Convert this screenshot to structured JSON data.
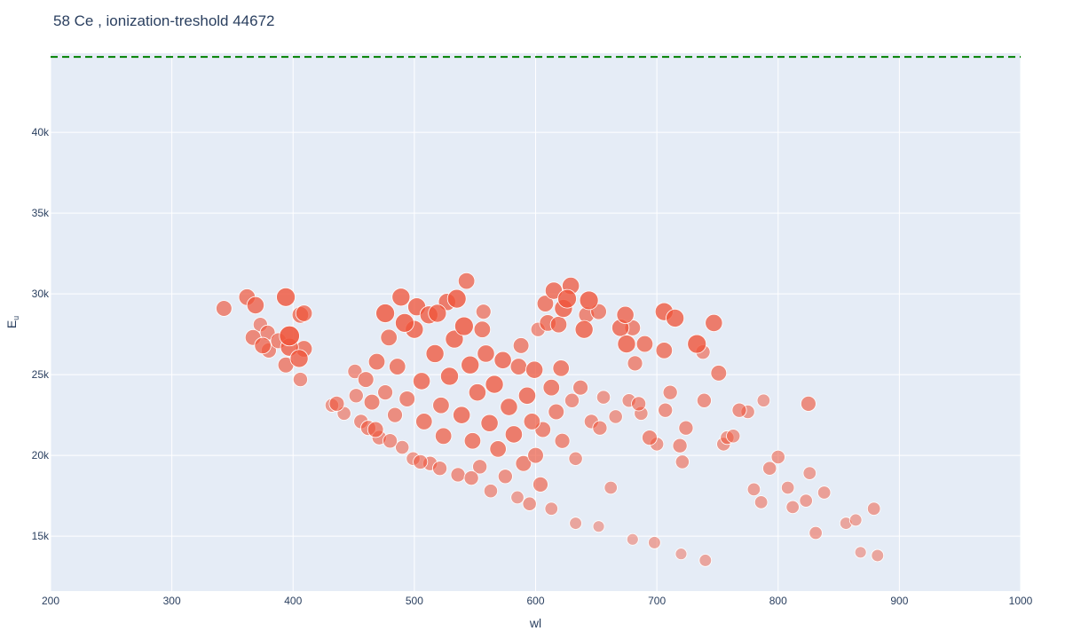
{
  "chart_data": {
    "type": "scatter",
    "title": "58 Ce , ionization-treshold 44672",
    "xlabel": "wl",
    "ylabel": "E",
    "ylabel_sub": "u",
    "xlim": [
      200,
      1000
    ],
    "ylim": [
      11600,
      44900
    ],
    "x_ticks": [
      200,
      300,
      400,
      500,
      600,
      700,
      800,
      900,
      1000
    ],
    "x_tick_labels": [
      "200",
      "300",
      "400",
      "500",
      "600",
      "700",
      "800",
      "900",
      "1000"
    ],
    "y_ticks": [
      15000,
      20000,
      25000,
      30000,
      35000,
      40000
    ],
    "y_tick_labels": [
      "15k",
      "20k",
      "25k",
      "30k",
      "35k",
      "40k"
    ],
    "threshold": {
      "y": 44672,
      "color": "#008000",
      "style": "dashed"
    },
    "marker_color": "#EF553B",
    "plot_background": "#E5ECF6",
    "grid": true,
    "points": [
      {
        "x": 343,
        "y": 29100,
        "s": 0.55
      },
      {
        "x": 362,
        "y": 29800,
        "s": 0.6
      },
      {
        "x": 367,
        "y": 27300,
        "s": 0.55
      },
      {
        "x": 369,
        "y": 29300,
        "s": 0.65
      },
      {
        "x": 373,
        "y": 28100,
        "s": 0.45
      },
      {
        "x": 375,
        "y": 26800,
        "s": 0.6
      },
      {
        "x": 379,
        "y": 27600,
        "s": 0.5
      },
      {
        "x": 380,
        "y": 26500,
        "s": 0.5
      },
      {
        "x": 388,
        "y": 27100,
        "s": 0.55
      },
      {
        "x": 394,
        "y": 29800,
        "s": 0.75
      },
      {
        "x": 394,
        "y": 25600,
        "s": 0.55
      },
      {
        "x": 397,
        "y": 26700,
        "s": 0.7
      },
      {
        "x": 397,
        "y": 27400,
        "s": 0.85
      },
      {
        "x": 405,
        "y": 26000,
        "s": 0.7
      },
      {
        "x": 406,
        "y": 28700,
        "s": 0.6
      },
      {
        "x": 406,
        "y": 24700,
        "s": 0.45
      },
      {
        "x": 409,
        "y": 28800,
        "s": 0.6
      },
      {
        "x": 409,
        "y": 26600,
        "s": 0.6
      },
      {
        "x": 432,
        "y": 23100,
        "s": 0.4
      },
      {
        "x": 436,
        "y": 23200,
        "s": 0.5
      },
      {
        "x": 442,
        "y": 22600,
        "s": 0.4
      },
      {
        "x": 451,
        "y": 25200,
        "s": 0.45
      },
      {
        "x": 452,
        "y": 23700,
        "s": 0.45
      },
      {
        "x": 456,
        "y": 22100,
        "s": 0.45
      },
      {
        "x": 460,
        "y": 24700,
        "s": 0.55
      },
      {
        "x": 462,
        "y": 21700,
        "s": 0.5
      },
      {
        "x": 465,
        "y": 23300,
        "s": 0.55
      },
      {
        "x": 468,
        "y": 21600,
        "s": 0.55
      },
      {
        "x": 469,
        "y": 25800,
        "s": 0.6
      },
      {
        "x": 471,
        "y": 21100,
        "s": 0.45
      },
      {
        "x": 476,
        "y": 28800,
        "s": 0.75
      },
      {
        "x": 476,
        "y": 23900,
        "s": 0.5
      },
      {
        "x": 479,
        "y": 27300,
        "s": 0.6
      },
      {
        "x": 480,
        "y": 20900,
        "s": 0.45
      },
      {
        "x": 484,
        "y": 22500,
        "s": 0.5
      },
      {
        "x": 486,
        "y": 25500,
        "s": 0.6
      },
      {
        "x": 489,
        "y": 29800,
        "s": 0.7
      },
      {
        "x": 490,
        "y": 20500,
        "s": 0.4
      },
      {
        "x": 492,
        "y": 28200,
        "s": 0.75
      },
      {
        "x": 494,
        "y": 23500,
        "s": 0.55
      },
      {
        "x": 499,
        "y": 19800,
        "s": 0.4
      },
      {
        "x": 500,
        "y": 27800,
        "s": 0.7
      },
      {
        "x": 502,
        "y": 29200,
        "s": 0.7
      },
      {
        "x": 506,
        "y": 24600,
        "s": 0.65
      },
      {
        "x": 508,
        "y": 22100,
        "s": 0.6
      },
      {
        "x": 512,
        "y": 28700,
        "s": 0.7
      },
      {
        "x": 513,
        "y": 19500,
        "s": 0.45
      },
      {
        "x": 517,
        "y": 26300,
        "s": 0.7
      },
      {
        "x": 519,
        "y": 28800,
        "s": 0.7
      },
      {
        "x": 522,
        "y": 23100,
        "s": 0.6
      },
      {
        "x": 524,
        "y": 21200,
        "s": 0.6
      },
      {
        "x": 527,
        "y": 29500,
        "s": 0.65
      },
      {
        "x": 529,
        "y": 24900,
        "s": 0.7
      },
      {
        "x": 533,
        "y": 27200,
        "s": 0.7
      },
      {
        "x": 535,
        "y": 29700,
        "s": 0.75
      },
      {
        "x": 536,
        "y": 18800,
        "s": 0.45
      },
      {
        "x": 539,
        "y": 22500,
        "s": 0.65
      },
      {
        "x": 541,
        "y": 28000,
        "s": 0.75
      },
      {
        "x": 543,
        "y": 30800,
        "s": 0.6
      },
      {
        "x": 546,
        "y": 25600,
        "s": 0.7
      },
      {
        "x": 548,
        "y": 20900,
        "s": 0.6
      },
      {
        "x": 552,
        "y": 23900,
        "s": 0.65
      },
      {
        "x": 554,
        "y": 19300,
        "s": 0.45
      },
      {
        "x": 556,
        "y": 27800,
        "s": 0.6
      },
      {
        "x": 557,
        "y": 28900,
        "s": 0.5
      },
      {
        "x": 559,
        "y": 26300,
        "s": 0.65
      },
      {
        "x": 562,
        "y": 22000,
        "s": 0.65
      },
      {
        "x": 566,
        "y": 24400,
        "s": 0.7
      },
      {
        "x": 569,
        "y": 20400,
        "s": 0.6
      },
      {
        "x": 573,
        "y": 25900,
        "s": 0.65
      },
      {
        "x": 575,
        "y": 18700,
        "s": 0.45
      },
      {
        "x": 578,
        "y": 23000,
        "s": 0.65
      },
      {
        "x": 582,
        "y": 21300,
        "s": 0.65
      },
      {
        "x": 586,
        "y": 25500,
        "s": 0.6
      },
      {
        "x": 588,
        "y": 26800,
        "s": 0.55
      },
      {
        "x": 590,
        "y": 19500,
        "s": 0.55
      },
      {
        "x": 593,
        "y": 23700,
        "s": 0.65
      },
      {
        "x": 595,
        "y": 17000,
        "s": 0.4
      },
      {
        "x": 597,
        "y": 22100,
        "s": 0.6
      },
      {
        "x": 599,
        "y": 25300,
        "s": 0.65
      },
      {
        "x": 600,
        "y": 20000,
        "s": 0.55
      },
      {
        "x": 602,
        "y": 27800,
        "s": 0.45
      },
      {
        "x": 604,
        "y": 18200,
        "s": 0.5
      },
      {
        "x": 606,
        "y": 21600,
        "s": 0.55
      },
      {
        "x": 608,
        "y": 29400,
        "s": 0.6
      },
      {
        "x": 610,
        "y": 28200,
        "s": 0.6
      },
      {
        "x": 613,
        "y": 24200,
        "s": 0.6
      },
      {
        "x": 615,
        "y": 30200,
        "s": 0.65
      },
      {
        "x": 617,
        "y": 22700,
        "s": 0.55
      },
      {
        "x": 619,
        "y": 28100,
        "s": 0.6
      },
      {
        "x": 621,
        "y": 25400,
        "s": 0.6
      },
      {
        "x": 622,
        "y": 20900,
        "s": 0.5
      },
      {
        "x": 623,
        "y": 29100,
        "s": 0.7
      },
      {
        "x": 626,
        "y": 29700,
        "s": 0.75
      },
      {
        "x": 629,
        "y": 30500,
        "s": 0.65
      },
      {
        "x": 630,
        "y": 23400,
        "s": 0.45
      },
      {
        "x": 633,
        "y": 19800,
        "s": 0.4
      },
      {
        "x": 637,
        "y": 24200,
        "s": 0.5
      },
      {
        "x": 640,
        "y": 27800,
        "s": 0.7
      },
      {
        "x": 642,
        "y": 28700,
        "s": 0.55
      },
      {
        "x": 644,
        "y": 29600,
        "s": 0.75
      },
      {
        "x": 646,
        "y": 22100,
        "s": 0.45
      },
      {
        "x": 652,
        "y": 28900,
        "s": 0.55
      },
      {
        "x": 653,
        "y": 21700,
        "s": 0.45
      },
      {
        "x": 656,
        "y": 23600,
        "s": 0.4
      },
      {
        "x": 662,
        "y": 18000,
        "s": 0.35
      },
      {
        "x": 666,
        "y": 22400,
        "s": 0.4
      },
      {
        "x": 670,
        "y": 27900,
        "s": 0.65
      },
      {
        "x": 674,
        "y": 28700,
        "s": 0.65
      },
      {
        "x": 675,
        "y": 26900,
        "s": 0.7
      },
      {
        "x": 677,
        "y": 23400,
        "s": 0.4
      },
      {
        "x": 680,
        "y": 27900,
        "s": 0.55
      },
      {
        "x": 682,
        "y": 25700,
        "s": 0.5
      },
      {
        "x": 685,
        "y": 23200,
        "s": 0.45
      },
      {
        "x": 687,
        "y": 22600,
        "s": 0.4
      },
      {
        "x": 690,
        "y": 26900,
        "s": 0.6
      },
      {
        "x": 694,
        "y": 21100,
        "s": 0.5
      },
      {
        "x": 700,
        "y": 20700,
        "s": 0.4
      },
      {
        "x": 706,
        "y": 28900,
        "s": 0.7
      },
      {
        "x": 706,
        "y": 26500,
        "s": 0.6
      },
      {
        "x": 707,
        "y": 22800,
        "s": 0.45
      },
      {
        "x": 711,
        "y": 23900,
        "s": 0.45
      },
      {
        "x": 715,
        "y": 28500,
        "s": 0.7
      },
      {
        "x": 719,
        "y": 20600,
        "s": 0.45
      },
      {
        "x": 721,
        "y": 19600,
        "s": 0.4
      },
      {
        "x": 724,
        "y": 21700,
        "s": 0.45
      },
      {
        "x": 733,
        "y": 26900,
        "s": 0.75
      },
      {
        "x": 738,
        "y": 26400,
        "s": 0.45
      },
      {
        "x": 739,
        "y": 23400,
        "s": 0.45
      },
      {
        "x": 747,
        "y": 28200,
        "s": 0.65
      },
      {
        "x": 751,
        "y": 25100,
        "s": 0.55
      },
      {
        "x": 755,
        "y": 20700,
        "s": 0.4
      },
      {
        "x": 758,
        "y": 21100,
        "s": 0.4
      },
      {
        "x": 763,
        "y": 21200,
        "s": 0.4
      },
      {
        "x": 768,
        "y": 22800,
        "s": 0.45
      },
      {
        "x": 775,
        "y": 22700,
        "s": 0.4
      },
      {
        "x": 780,
        "y": 17900,
        "s": 0.35
      },
      {
        "x": 786,
        "y": 17100,
        "s": 0.35
      },
      {
        "x": 788,
        "y": 23400,
        "s": 0.35
      },
      {
        "x": 793,
        "y": 19200,
        "s": 0.4
      },
      {
        "x": 800,
        "y": 19900,
        "s": 0.4
      },
      {
        "x": 808,
        "y": 18000,
        "s": 0.35
      },
      {
        "x": 812,
        "y": 16800,
        "s": 0.35
      },
      {
        "x": 823,
        "y": 17200,
        "s": 0.35
      },
      {
        "x": 825,
        "y": 23200,
        "s": 0.5
      },
      {
        "x": 826,
        "y": 18900,
        "s": 0.35
      },
      {
        "x": 831,
        "y": 15200,
        "s": 0.35
      },
      {
        "x": 838,
        "y": 17700,
        "s": 0.35
      },
      {
        "x": 856,
        "y": 15800,
        "s": 0.3
      },
      {
        "x": 864,
        "y": 16000,
        "s": 0.3
      },
      {
        "x": 868,
        "y": 14000,
        "s": 0.25
      },
      {
        "x": 879,
        "y": 16700,
        "s": 0.35
      },
      {
        "x": 882,
        "y": 13800,
        "s": 0.3
      },
      {
        "x": 740,
        "y": 13500,
        "s": 0.3
      },
      {
        "x": 720,
        "y": 13900,
        "s": 0.25
      },
      {
        "x": 698,
        "y": 14600,
        "s": 0.3
      },
      {
        "x": 680,
        "y": 14800,
        "s": 0.25
      },
      {
        "x": 652,
        "y": 15600,
        "s": 0.25
      },
      {
        "x": 633,
        "y": 15800,
        "s": 0.3
      },
      {
        "x": 613,
        "y": 16700,
        "s": 0.35
      },
      {
        "x": 585,
        "y": 17400,
        "s": 0.35
      },
      {
        "x": 563,
        "y": 17800,
        "s": 0.4
      },
      {
        "x": 547,
        "y": 18600,
        "s": 0.45
      },
      {
        "x": 521,
        "y": 19200,
        "s": 0.45
      },
      {
        "x": 505,
        "y": 19600,
        "s": 0.45
      }
    ]
  }
}
